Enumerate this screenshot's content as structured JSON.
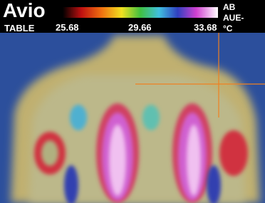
{
  "header": {
    "brand": "Avio",
    "mode": "TABLE",
    "right_lines": [
      "AB",
      "AUE-",
      "°C"
    ]
  },
  "colorbar": {
    "labels": [
      "25.68",
      "29.66",
      "33.68"
    ]
  }
}
